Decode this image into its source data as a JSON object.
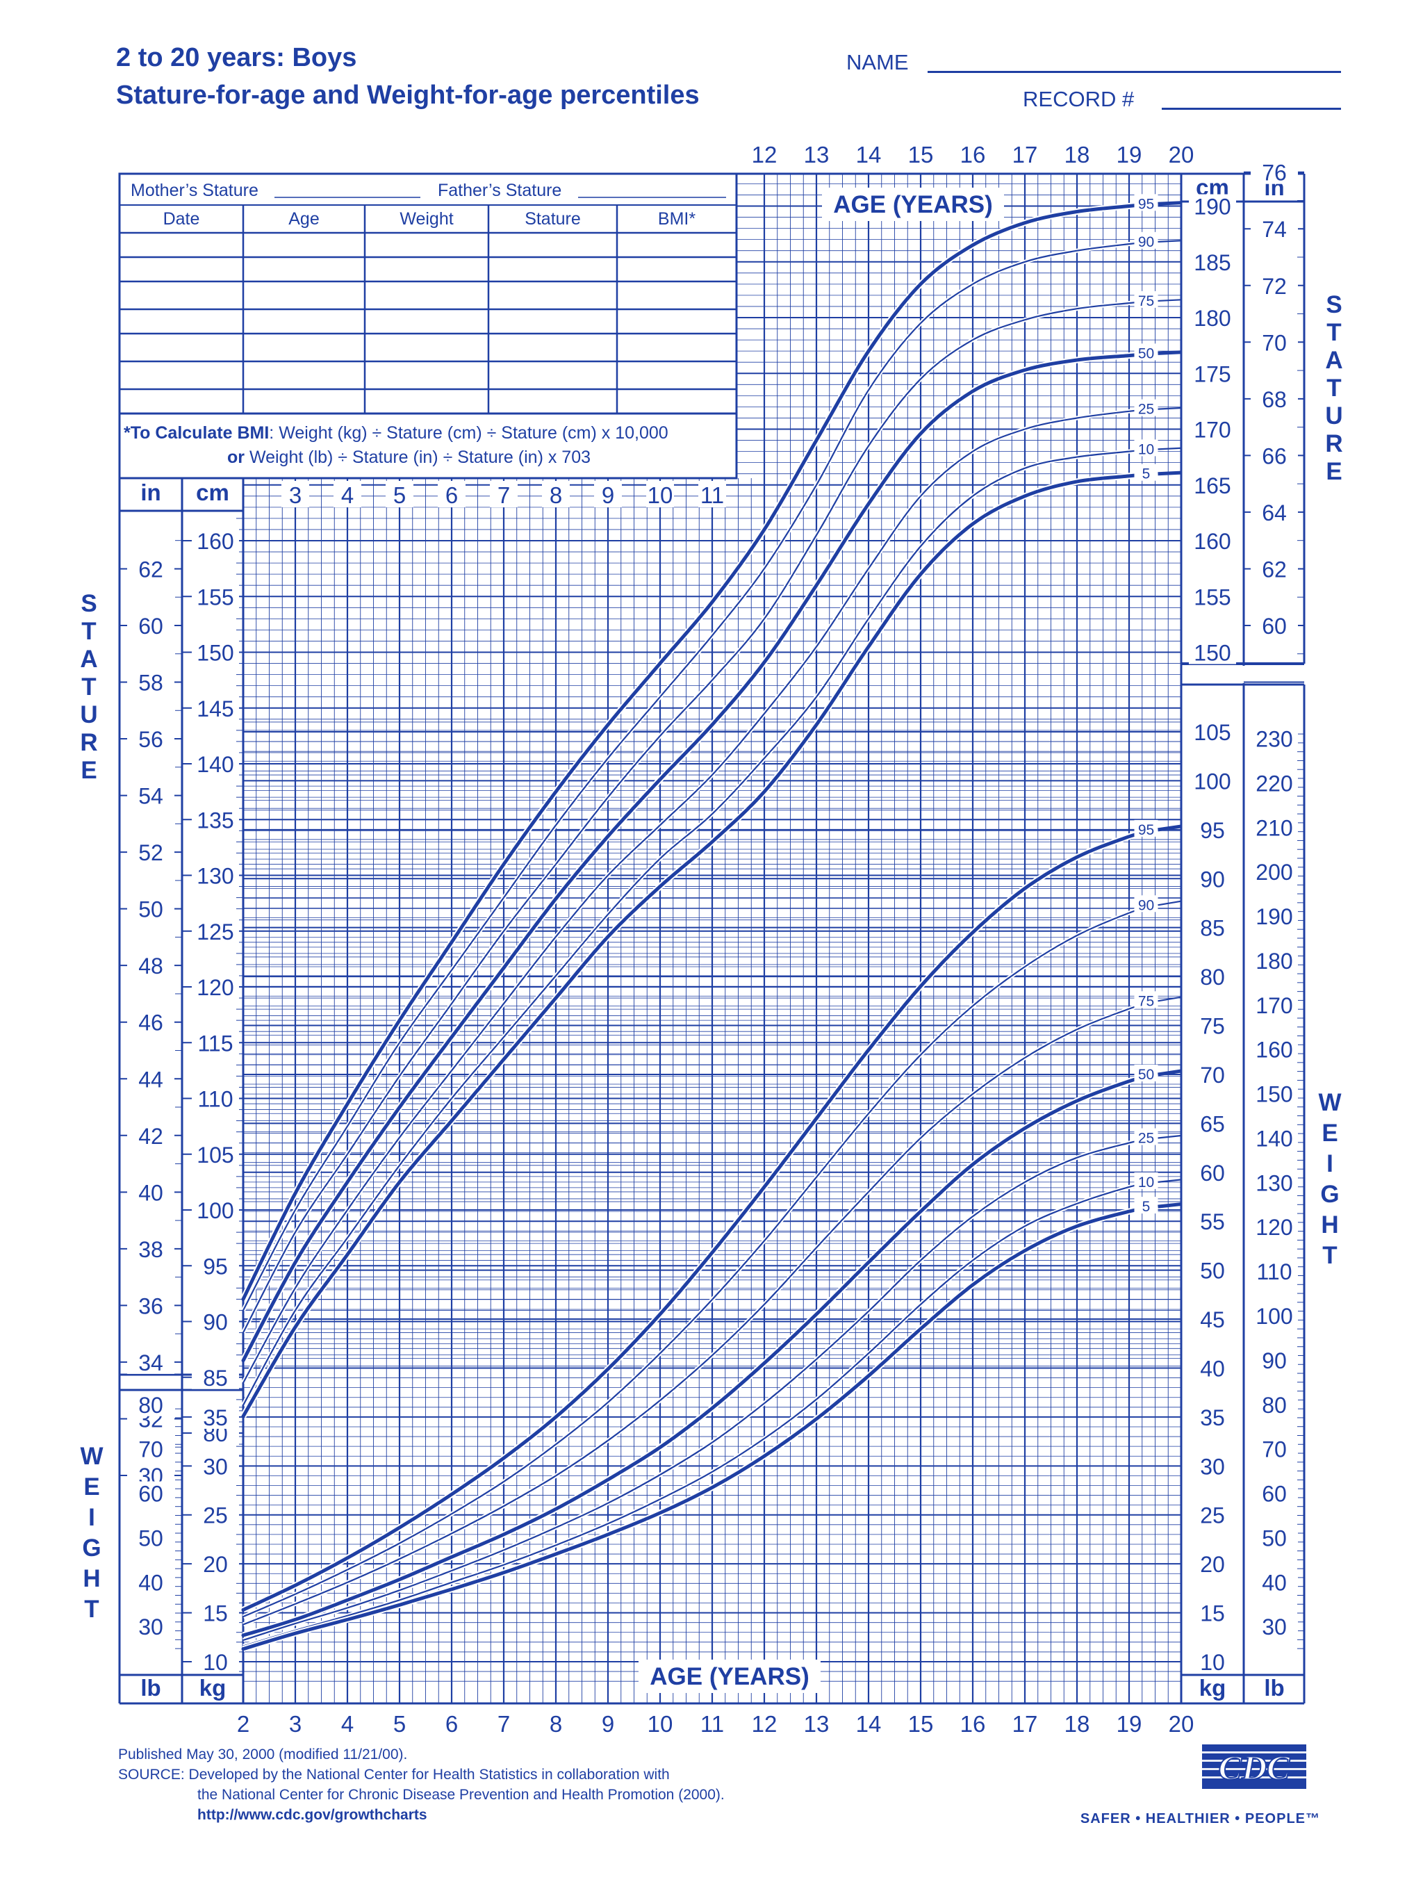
{
  "header": {
    "title_line1": "2 to 20 years: Boys",
    "title_line2": "Stature-for-age and Weight-for-age percentiles",
    "name_label": "NAME",
    "record_label": "RECORD #"
  },
  "record_table": {
    "mothers_stature": "Mother’s Stature",
    "fathers_stature": "Father’s Stature",
    "columns": [
      "Date",
      "Age",
      "Weight",
      "Stature",
      "BMI*"
    ],
    "bmi_note_bold": "*To Calculate BMI",
    "bmi_note_1": ": Weight (kg) ÷ Stature (cm) ÷ Stature (cm) x 10,000",
    "bmi_note_2_bold": "or",
    "bmi_note_2": " Weight (lb) ÷ Stature (in) ÷ Stature (in) x 703"
  },
  "labels": {
    "age_years": "AGE (YEARS)",
    "in": "in",
    "cm": "cm",
    "kg": "kg",
    "lb": "lb",
    "stature_vertical": "STATURE",
    "weight_vertical": "WEIGHT"
  },
  "footer": {
    "published": "Published May 30, 2000 (modified 11/21/00).",
    "source_label": "SOURCE:",
    "source_1": "Developed by the National Center for Health Statistics in collaboration with",
    "source_2": "the National Center for Chronic Disease Prevention and Health Promotion (2000).",
    "url": "http://www.cdc.gov/growthcharts",
    "cdc_logo_text": "CDC",
    "tagline": "SAFER • HEALTHIER • PEOPLE™"
  },
  "colors": {
    "ink": "#1f3fa3",
    "background": "#ffffff"
  },
  "chart_data": {
    "type": "line",
    "x_label": "AGE (YEARS)",
    "x_range": [
      2,
      20
    ],
    "age_ticks": [
      2,
      3,
      4,
      5,
      6,
      7,
      8,
      9,
      10,
      11,
      12,
      13,
      14,
      15,
      16,
      17,
      18,
      19,
      20
    ],
    "stature": {
      "unit": "cm",
      "cm_ticks_left": [
        80,
        85,
        90,
        95,
        100,
        105,
        110,
        115,
        120,
        125,
        130,
        135,
        140,
        145,
        150,
        155,
        160
      ],
      "cm_ticks_right": [
        150,
        155,
        160,
        165,
        170,
        175,
        180,
        185,
        190
      ],
      "in_ticks_left": [
        30,
        32,
        34,
        36,
        38,
        40,
        42,
        44,
        46,
        48,
        50,
        52,
        54,
        56,
        58,
        60,
        62
      ],
      "in_ticks_right": [
        60,
        62,
        64,
        66,
        68,
        70,
        72,
        74,
        76
      ],
      "percentile_labels": [
        "95",
        "90",
        "75",
        "50",
        "25",
        "10",
        "5"
      ],
      "series": [
        {
          "name": "95",
          "x": [
            2,
            3,
            4,
            5,
            6,
            7,
            8,
            9,
            10,
            11,
            12,
            13,
            14,
            15,
            16,
            17,
            18,
            19,
            19.5
          ],
          "y": [
            92.0,
            101.5,
            109.5,
            117.0,
            124.0,
            131.0,
            137.5,
            143.5,
            149.0,
            154.5,
            161.0,
            169.0,
            177.0,
            183.0,
            186.5,
            188.5,
            189.5,
            190.0,
            190.2
          ]
        },
        {
          "name": "90",
          "x": [
            2,
            3,
            4,
            5,
            6,
            7,
            8,
            9,
            10,
            11,
            12,
            13,
            14,
            15,
            16,
            17,
            18,
            19,
            19.5
          ],
          "y": [
            91.0,
            100.0,
            107.5,
            115.0,
            121.5,
            128.0,
            134.5,
            140.5,
            146.0,
            151.5,
            157.5,
            165.0,
            173.5,
            179.5,
            183.0,
            185.0,
            186.0,
            186.6,
            186.8
          ]
        },
        {
          "name": "75",
          "x": [
            2,
            3,
            4,
            5,
            6,
            7,
            8,
            9,
            10,
            11,
            12,
            13,
            14,
            15,
            16,
            17,
            18,
            19,
            19.5
          ],
          "y": [
            89.0,
            98.0,
            105.0,
            112.0,
            118.5,
            125.0,
            131.0,
            137.0,
            142.5,
            147.5,
            153.0,
            160.5,
            168.5,
            174.5,
            178.0,
            179.8,
            180.8,
            181.3,
            181.5
          ]
        },
        {
          "name": "50",
          "x": [
            2,
            3,
            4,
            5,
            6,
            7,
            8,
            9,
            10,
            11,
            12,
            13,
            14,
            15,
            16,
            17,
            18,
            19,
            19.5
          ],
          "y": [
            86.5,
            95.3,
            102.5,
            109.2,
            115.5,
            121.7,
            127.9,
            133.5,
            138.6,
            143.5,
            149.1,
            156.0,
            163.3,
            169.6,
            173.4,
            175.3,
            176.2,
            176.6,
            176.8
          ]
        },
        {
          "name": "25",
          "x": [
            2,
            3,
            4,
            5,
            6,
            7,
            8,
            9,
            10,
            11,
            12,
            13,
            14,
            15,
            16,
            17,
            18,
            19,
            19.5
          ],
          "y": [
            84.5,
            93.0,
            100.0,
            106.5,
            112.5,
            118.5,
            124.5,
            130.0,
            134.5,
            139.0,
            144.5,
            150.5,
            157.5,
            164.0,
            168.0,
            170.0,
            171.0,
            171.6,
            171.8
          ]
        },
        {
          "name": "10",
          "x": [
            2,
            3,
            4,
            5,
            6,
            7,
            8,
            9,
            10,
            11,
            12,
            13,
            14,
            15,
            16,
            17,
            18,
            19,
            19.5
          ],
          "y": [
            82.5,
            91.0,
            97.5,
            104.0,
            110.0,
            115.5,
            121.0,
            126.5,
            131.5,
            135.5,
            140.5,
            146.0,
            153.0,
            159.5,
            164.0,
            166.5,
            167.5,
            168.0,
            168.2
          ]
        },
        {
          "name": "5",
          "x": [
            2,
            3,
            4,
            5,
            6,
            7,
            8,
            9,
            10,
            11,
            12,
            13,
            14,
            15,
            16,
            17,
            18,
            19,
            19.5
          ],
          "y": [
            81.5,
            89.5,
            96.0,
            102.5,
            108.0,
            113.5,
            119.0,
            124.5,
            129.0,
            133.0,
            137.5,
            143.5,
            150.5,
            157.0,
            161.5,
            164.0,
            165.3,
            165.8,
            166.0
          ]
        }
      ]
    },
    "weight": {
      "unit": "kg",
      "kg_ticks_left": [
        10,
        15,
        20,
        25,
        30,
        35
      ],
      "kg_ticks_right": [
        10,
        15,
        20,
        25,
        30,
        35,
        40,
        45,
        50,
        55,
        60,
        65,
        70,
        75,
        80,
        85,
        90,
        95,
        100,
        105
      ],
      "lb_ticks_left": [
        30,
        40,
        50,
        60,
        70,
        80
      ],
      "lb_ticks_right": [
        30,
        40,
        50,
        60,
        70,
        80,
        90,
        100,
        110,
        120,
        130,
        140,
        150,
        160,
        170,
        180,
        190,
        200,
        210,
        220,
        230
      ],
      "percentile_labels": [
        "95",
        "90",
        "75",
        "50",
        "25",
        "10",
        "5"
      ],
      "series": [
        {
          "name": "95",
          "x": [
            2,
            3,
            4,
            5,
            6,
            7,
            8,
            9,
            10,
            11,
            12,
            13,
            14,
            15,
            16,
            17,
            18,
            19,
            19.5
          ],
          "y": [
            15.3,
            17.8,
            20.6,
            23.7,
            27.1,
            30.8,
            35.0,
            39.9,
            45.5,
            51.8,
            58.5,
            65.5,
            72.5,
            79.0,
            84.5,
            89.0,
            92.2,
            94.3,
            95.0
          ]
        },
        {
          "name": "90",
          "x": [
            2,
            3,
            4,
            5,
            6,
            7,
            8,
            9,
            10,
            11,
            12,
            13,
            14,
            15,
            16,
            17,
            18,
            19,
            19.5
          ],
          "y": [
            14.6,
            16.9,
            19.4,
            22.1,
            25.1,
            28.4,
            32.2,
            36.5,
            41.5,
            47.0,
            53.0,
            59.5,
            66.0,
            72.0,
            77.0,
            81.0,
            84.2,
            86.5,
            87.3
          ]
        },
        {
          "name": "75",
          "x": [
            2,
            3,
            4,
            5,
            6,
            7,
            8,
            9,
            10,
            11,
            12,
            13,
            14,
            15,
            16,
            17,
            18,
            19,
            19.5
          ],
          "y": [
            13.8,
            15.9,
            18.1,
            20.5,
            23.1,
            25.9,
            29.0,
            32.6,
            36.7,
            41.3,
            46.5,
            52.3,
            58.0,
            63.5,
            68.0,
            71.7,
            74.6,
            76.7,
            77.5
          ]
        },
        {
          "name": "50",
          "x": [
            2,
            3,
            4,
            5,
            6,
            7,
            8,
            9,
            10,
            11,
            12,
            13,
            14,
            15,
            16,
            17,
            18,
            19,
            19.5
          ],
          "y": [
            12.7,
            14.3,
            16.3,
            18.4,
            20.7,
            23.0,
            25.6,
            28.6,
            31.9,
            35.9,
            40.5,
            45.5,
            50.8,
            56.0,
            60.8,
            64.5,
            67.3,
            69.3,
            70.0
          ]
        },
        {
          "name": "25",
          "x": [
            2,
            3,
            4,
            5,
            6,
            7,
            8,
            9,
            10,
            11,
            12,
            13,
            14,
            15,
            16,
            17,
            18,
            19,
            19.5
          ],
          "y": [
            12.2,
            13.9,
            15.5,
            17.3,
            19.3,
            21.4,
            23.7,
            26.2,
            29.1,
            32.4,
            36.4,
            40.9,
            45.8,
            51.0,
            55.5,
            59.0,
            61.5,
            63.0,
            63.5
          ]
        },
        {
          "name": "10",
          "x": [
            2,
            3,
            4,
            5,
            6,
            7,
            8,
            9,
            10,
            11,
            12,
            13,
            14,
            15,
            16,
            17,
            18,
            19,
            19.5
          ],
          "y": [
            11.6,
            13.2,
            14.7,
            16.3,
            18.1,
            19.9,
            21.9,
            24.1,
            26.6,
            29.4,
            32.8,
            36.8,
            41.5,
            46.5,
            51.0,
            54.5,
            56.8,
            58.5,
            59.0
          ]
        },
        {
          "name": "5",
          "x": [
            2,
            3,
            4,
            5,
            6,
            7,
            8,
            9,
            10,
            11,
            12,
            13,
            14,
            15,
            16,
            17,
            18,
            19,
            19.5
          ],
          "y": [
            11.3,
            12.9,
            14.3,
            15.8,
            17.4,
            19.1,
            21.0,
            23.0,
            25.2,
            27.8,
            31.0,
            34.8,
            39.2,
            44.0,
            48.5,
            52.0,
            54.5,
            56.0,
            56.5
          ]
        }
      ]
    }
  }
}
